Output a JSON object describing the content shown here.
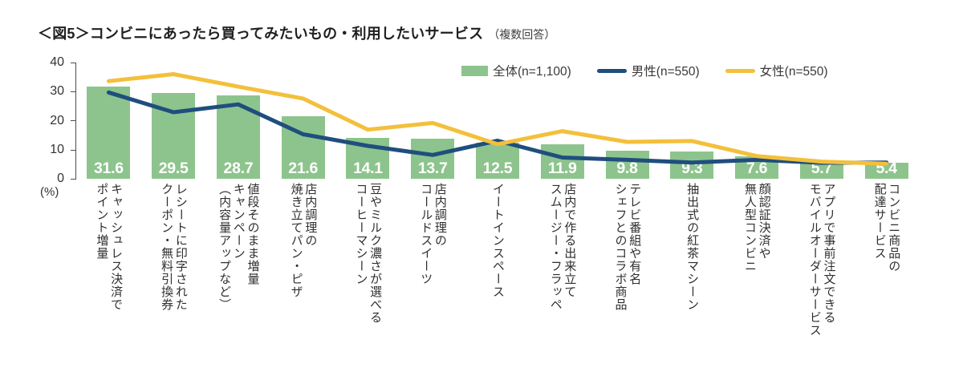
{
  "title": {
    "main": "＜図5＞コンビニにあったら買ってみたいもの・利用したいサービス",
    "note": "（複数回答）"
  },
  "axis": {
    "ticks": [
      "40",
      "30",
      "20",
      "10",
      "0"
    ],
    "unit": "(%)"
  },
  "colors": {
    "bar_green": "#8dc48d",
    "male_navy": "#1f4e7e",
    "female_yellow": "#f3c03c"
  },
  "chart_data": {
    "type": "bar",
    "note": "bar series = 全体, two overlay line series = 男性/女性 (line values estimated from plot)",
    "ylim": [
      0,
      40
    ],
    "ylabel": "(%)",
    "legend_position": "top",
    "categories": [
      "キャッシュレス決済で\nポイント増量",
      "レシートに印字された\nクーポン・無料引換券",
      "値段そのまま増量\nキャンペーン\n（内容量アップなど）",
      "店内調理の\n焼き立てパン・ピザ",
      "豆やミルク濃さが選べる\nコーヒーマシーン",
      "店内調理の\nコールドスイーツ",
      "イートインスペース",
      "店内で作る出来立て\nスムージー・フラッペ",
      "テレビ番組や有名\nシェフとのコラボ商品",
      "抽出式の紅茶マシーン",
      "顔認証決済や\n無人型コンビニ",
      "アプリで事前注文できる\nモバイルオーダーサービス",
      "コンビニ商品の\n配達サービス"
    ],
    "series": [
      {
        "name": "全体(n=1,100)",
        "type": "bar",
        "color": "#8dc48d",
        "values": [
          31.6,
          29.5,
          28.7,
          21.6,
          14.1,
          13.7,
          12.5,
          11.9,
          9.8,
          9.3,
          7.6,
          5.7,
          5.4
        ]
      },
      {
        "name": "男性(n=550)",
        "type": "line",
        "color": "#1f4e7e",
        "estimated": true,
        "values": [
          29.7,
          22.9,
          25.6,
          15.3,
          11.3,
          8.2,
          13.1,
          7.3,
          6.5,
          5.6,
          6.5,
          5.5,
          5.6
        ]
      },
      {
        "name": "女性(n=550)",
        "type": "line",
        "color": "#f3c03c",
        "estimated": true,
        "values": [
          33.6,
          36.0,
          31.7,
          27.6,
          16.9,
          19.2,
          11.9,
          16.4,
          12.7,
          13.0,
          7.8,
          5.9,
          5.2
        ]
      }
    ]
  }
}
